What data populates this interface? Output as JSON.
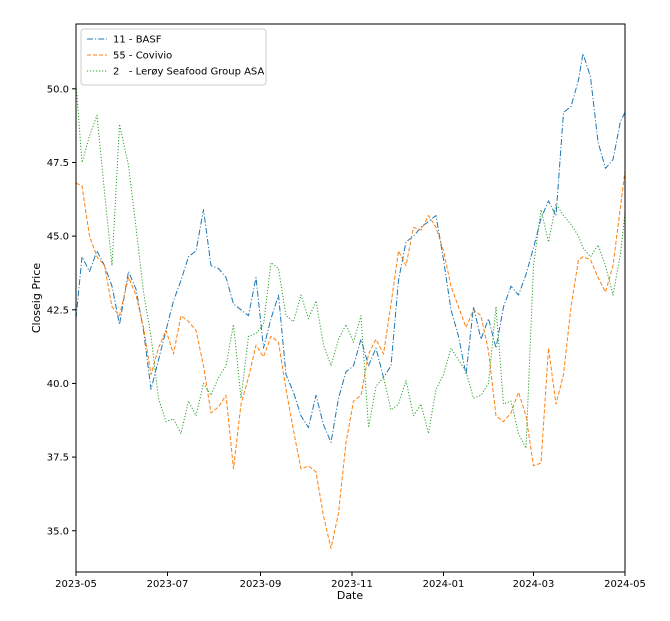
{
  "chart_data": {
    "type": "line",
    "title": "",
    "xlabel": "Date",
    "ylabel": "Closeig Price",
    "xlim": [
      "2023-05-01",
      "2024-05-01"
    ],
    "ylim": [
      33.6,
      52.2
    ],
    "yticks": [
      35.0,
      37.5,
      40.0,
      42.5,
      45.0,
      47.5,
      50.0
    ],
    "ytick_labels": [
      "35.0",
      "37.5",
      "40.0",
      "42.5",
      "45.0",
      "47.5",
      "50.0"
    ],
    "xticks": [
      "2023-05-01",
      "2023-07-01",
      "2023-09-01",
      "2023-11-01",
      "2024-01-01",
      "2024-03-01",
      "2024-05-01"
    ],
    "xtick_labels": [
      "2023-05",
      "2023-07",
      "2023-09",
      "2023-11",
      "2024-01",
      "2024-03",
      "2024-05"
    ],
    "grid": false,
    "legend_position": "top-left",
    "series": [
      {
        "name": "11 - BASF",
        "color": "#1f77b4",
        "dash": "dashdot",
        "x": [
          "2023-05-01",
          "2023-05-05",
          "2023-05-10",
          "2023-05-15",
          "2023-05-20",
          "2023-05-25",
          "2023-05-30",
          "2023-06-05",
          "2023-06-10",
          "2023-06-15",
          "2023-06-20",
          "2023-06-25",
          "2023-06-30",
          "2023-07-05",
          "2023-07-10",
          "2023-07-15",
          "2023-07-20",
          "2023-07-25",
          "2023-07-30",
          "2023-08-04",
          "2023-08-09",
          "2023-08-14",
          "2023-08-19",
          "2023-08-24",
          "2023-08-29",
          "2023-09-03",
          "2023-09-08",
          "2023-09-13",
          "2023-09-18",
          "2023-09-23",
          "2023-09-28",
          "2023-10-03",
          "2023-10-08",
          "2023-10-13",
          "2023-10-18",
          "2023-10-23",
          "2023-10-28",
          "2023-11-02",
          "2023-11-07",
          "2023-11-12",
          "2023-11-17",
          "2023-11-22",
          "2023-11-27",
          "2023-12-02",
          "2023-12-07",
          "2023-12-12",
          "2023-12-17",
          "2023-12-22",
          "2023-12-27",
          "2024-01-01",
          "2024-01-06",
          "2024-01-11",
          "2024-01-16",
          "2024-01-21",
          "2024-01-26",
          "2024-01-31",
          "2024-02-05",
          "2024-02-10",
          "2024-02-15",
          "2024-02-20",
          "2024-02-25",
          "2024-03-01",
          "2024-03-06",
          "2024-03-11",
          "2024-03-16",
          "2024-03-21",
          "2024-03-26",
          "2024-03-31",
          "2024-04-03",
          "2024-04-08",
          "2024-04-13",
          "2024-04-18",
          "2024-04-23",
          "2024-04-28",
          "2024-05-01"
        ],
        "values": [
          42.2,
          44.3,
          43.8,
          44.5,
          44.0,
          43.3,
          42.0,
          43.8,
          43.2,
          41.8,
          39.8,
          40.8,
          41.8,
          42.8,
          43.5,
          44.3,
          44.5,
          45.9,
          44.0,
          43.9,
          43.6,
          42.7,
          42.5,
          42.3,
          43.6,
          41.2,
          42.2,
          43.0,
          40.3,
          39.7,
          38.9,
          38.5,
          39.6,
          38.6,
          38.0,
          39.5,
          40.4,
          40.6,
          41.5,
          40.6,
          41.2,
          40.2,
          40.6,
          43.5,
          44.8,
          45.0,
          45.3,
          45.5,
          45.7,
          44.2,
          42.5,
          41.6,
          40.3,
          42.6,
          41.5,
          42.2,
          41.2,
          42.6,
          43.3,
          43.0,
          43.7,
          44.6,
          45.6,
          46.2,
          45.7,
          49.2,
          49.4,
          50.3,
          51.2,
          50.4,
          48.2,
          47.3,
          47.6,
          48.9,
          49.2
        ]
      },
      {
        "name": "55 - Covivio",
        "color": "#ff7f0e",
        "dash": "dashed",
        "x": [
          "2023-05-01",
          "2023-05-05",
          "2023-05-10",
          "2023-05-15",
          "2023-05-20",
          "2023-05-25",
          "2023-05-30",
          "2023-06-05",
          "2023-06-10",
          "2023-06-15",
          "2023-06-20",
          "2023-06-25",
          "2023-06-30",
          "2023-07-05",
          "2023-07-10",
          "2023-07-15",
          "2023-07-20",
          "2023-07-25",
          "2023-07-30",
          "2023-08-04",
          "2023-08-09",
          "2023-08-14",
          "2023-08-19",
          "2023-08-24",
          "2023-08-29",
          "2023-09-03",
          "2023-09-08",
          "2023-09-13",
          "2023-09-18",
          "2023-09-23",
          "2023-09-28",
          "2023-10-03",
          "2023-10-08",
          "2023-10-13",
          "2023-10-18",
          "2023-10-23",
          "2023-10-28",
          "2023-11-02",
          "2023-11-07",
          "2023-11-12",
          "2023-11-17",
          "2023-11-22",
          "2023-11-27",
          "2023-12-02",
          "2023-12-07",
          "2023-12-12",
          "2023-12-17",
          "2023-12-22",
          "2023-12-27",
          "2024-01-01",
          "2024-01-06",
          "2024-01-11",
          "2024-01-16",
          "2024-01-21",
          "2024-01-26",
          "2024-01-31",
          "2024-02-05",
          "2024-02-10",
          "2024-02-15",
          "2024-02-20",
          "2024-02-25",
          "2024-03-01",
          "2024-03-06",
          "2024-03-11",
          "2024-03-16",
          "2024-03-21",
          "2024-03-26",
          "2024-03-31",
          "2024-04-03",
          "2024-04-08",
          "2024-04-13",
          "2024-04-18",
          "2024-04-23",
          "2024-04-28",
          "2024-05-01"
        ],
        "values": [
          46.8,
          46.7,
          45.0,
          44.3,
          44.0,
          42.6,
          42.3,
          43.6,
          43.0,
          41.9,
          40.3,
          41.2,
          41.8,
          41.0,
          42.3,
          42.1,
          41.8,
          40.6,
          39.0,
          39.2,
          39.6,
          37.1,
          39.3,
          40.2,
          41.3,
          40.9,
          41.6,
          41.4,
          39.8,
          38.4,
          37.1,
          37.2,
          37.0,
          35.5,
          34.4,
          35.6,
          38.0,
          39.4,
          39.6,
          41.0,
          41.5,
          41.0,
          42.7,
          44.5,
          44.0,
          45.3,
          45.2,
          45.7,
          45.3,
          44.5,
          43.3,
          42.6,
          41.9,
          42.5,
          42.3,
          41.1,
          38.9,
          38.7,
          39.0,
          39.7,
          38.9,
          37.2,
          37.3,
          41.2,
          39.3,
          40.3,
          42.6,
          44.2,
          44.3,
          44.2,
          43.6,
          43.1,
          44.0,
          46.0,
          47.2
        ]
      },
      {
        "name": "2   - Lerøy Seafood Group ASA",
        "color": "#2ca02c",
        "dash": "dotted",
        "x": [
          "2023-05-01",
          "2023-05-05",
          "2023-05-10",
          "2023-05-15",
          "2023-05-20",
          "2023-05-25",
          "2023-05-30",
          "2023-06-05",
          "2023-06-10",
          "2023-06-15",
          "2023-06-20",
          "2023-06-25",
          "2023-06-30",
          "2023-07-05",
          "2023-07-10",
          "2023-07-15",
          "2023-07-20",
          "2023-07-25",
          "2023-07-30",
          "2023-08-04",
          "2023-08-09",
          "2023-08-14",
          "2023-08-19",
          "2023-08-24",
          "2023-08-29",
          "2023-09-03",
          "2023-09-08",
          "2023-09-13",
          "2023-09-18",
          "2023-09-23",
          "2023-09-28",
          "2023-10-03",
          "2023-10-08",
          "2023-10-13",
          "2023-10-18",
          "2023-10-23",
          "2023-10-28",
          "2023-11-02",
          "2023-11-07",
          "2023-11-12",
          "2023-11-17",
          "2023-11-22",
          "2023-11-27",
          "2023-12-02",
          "2023-12-07",
          "2023-12-12",
          "2023-12-17",
          "2023-12-22",
          "2023-12-27",
          "2024-01-01",
          "2024-01-06",
          "2024-01-11",
          "2024-01-16",
          "2024-01-21",
          "2024-01-26",
          "2024-01-31",
          "2024-02-05",
          "2024-02-10",
          "2024-02-15",
          "2024-02-20",
          "2024-02-25",
          "2024-03-01",
          "2024-03-06",
          "2024-03-11",
          "2024-03-16",
          "2024-03-21",
          "2024-03-26",
          "2024-03-31",
          "2024-04-03",
          "2024-04-08",
          "2024-04-13",
          "2024-04-18",
          "2024-04-23",
          "2024-04-28",
          "2024-05-01"
        ],
        "values": [
          50.2,
          47.5,
          48.4,
          49.1,
          46.5,
          44.0,
          48.8,
          47.4,
          45.3,
          43.1,
          41.6,
          39.5,
          38.7,
          38.8,
          38.3,
          39.4,
          38.9,
          40.0,
          39.6,
          40.2,
          40.6,
          42.0,
          39.5,
          41.6,
          41.7,
          42.0,
          44.1,
          43.9,
          42.3,
          42.1,
          43.0,
          42.2,
          42.8,
          41.3,
          40.6,
          41.5,
          42.0,
          41.4,
          42.3,
          38.5,
          39.9,
          40.2,
          39.1,
          39.3,
          40.1,
          38.9,
          39.3,
          38.3,
          39.8,
          40.3,
          41.2,
          40.8,
          40.4,
          39.5,
          39.6,
          40.0,
          42.6,
          39.3,
          39.4,
          38.3,
          37.8,
          44.0,
          45.9,
          44.8,
          46.1,
          45.7,
          45.4,
          45.0,
          44.6,
          44.3,
          44.7,
          44.0,
          43.0,
          44.4,
          45.8
        ]
      }
    ]
  }
}
